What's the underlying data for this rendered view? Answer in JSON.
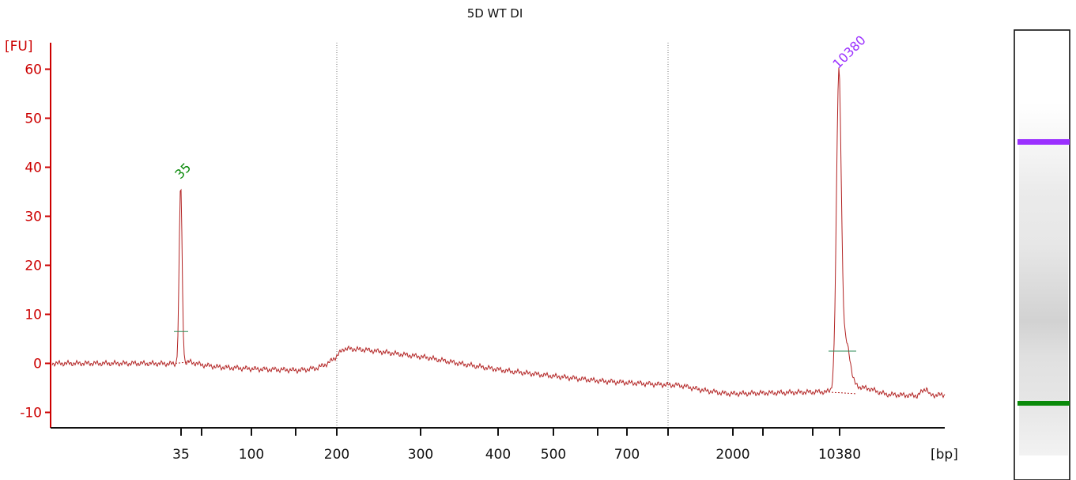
{
  "chart_data": {
    "type": "line",
    "title": "5D WT DI",
    "ylabel": "[FU]",
    "xlabel": "[bp]",
    "ylim": [
      -13,
      65
    ],
    "y_ticks": [
      -10,
      0,
      10,
      20,
      30,
      40,
      50,
      60
    ],
    "x_tick_labels": [
      "35",
      "100",
      "200",
      "300",
      "400",
      "500",
      "700",
      "2000",
      "10380"
    ],
    "grid": false,
    "colors": {
      "trace": "#b22222",
      "axis": "#cc0000",
      "marker_low": "#0a8a0a",
      "marker_high": "#9b30ff",
      "baseline_tick": "#2e8b57"
    },
    "peaks": [
      {
        "label": "35",
        "value": 36.5,
        "color": "#0a8a0a"
      },
      {
        "label": "10380",
        "value": 59,
        "color": "#9b30ff"
      }
    ],
    "gel_lane": {
      "upper_marker_color": "#9b30ff",
      "lower_marker_color": "#0a8a0a"
    }
  }
}
